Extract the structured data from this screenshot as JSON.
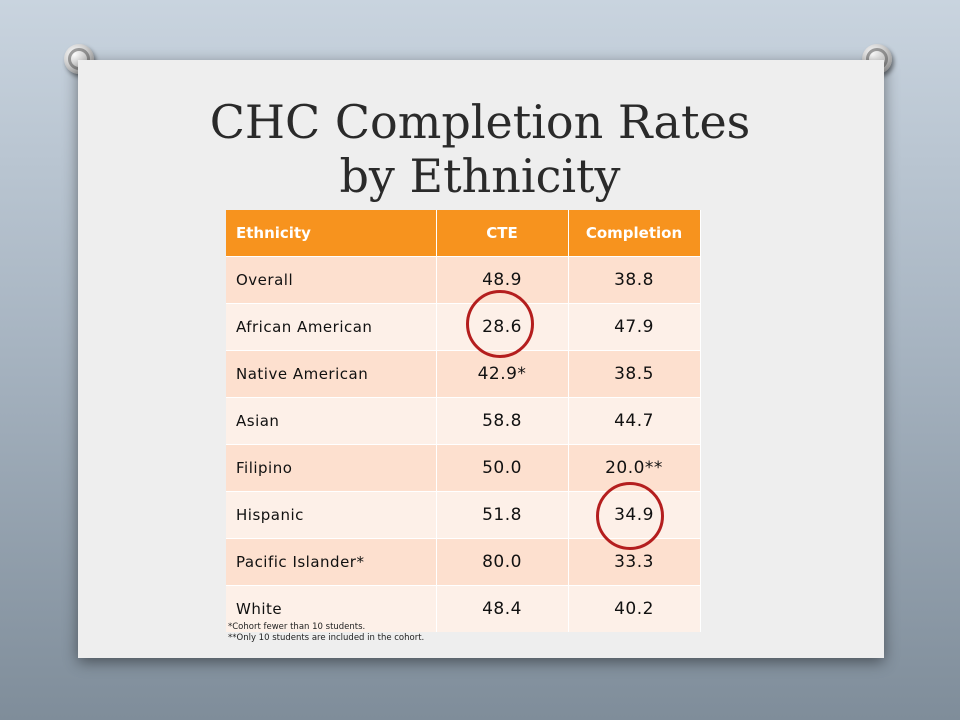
{
  "title": "CHC Completion Rates by Ethnicity",
  "table": {
    "headers": [
      "Ethnicity",
      "CTE",
      "Completion"
    ],
    "rows": [
      {
        "ethnicity": "Overall",
        "cte": "48.9",
        "completion": "38.8"
      },
      {
        "ethnicity": "African American",
        "cte": "28.6",
        "completion": "47.9"
      },
      {
        "ethnicity": "Native American",
        "cte": "42.9*",
        "completion": "38.5"
      },
      {
        "ethnicity": "Asian",
        "cte": "58.8",
        "completion": "44.7"
      },
      {
        "ethnicity": "Filipino",
        "cte": "50.0",
        "completion": "20.0**"
      },
      {
        "ethnicity": "Hispanic",
        "cte": "51.8",
        "completion": "34.9"
      },
      {
        "ethnicity": "Pacific Islander*",
        "cte": "80.0",
        "completion": "33.3"
      },
      {
        "ethnicity": "White",
        "cte": "48.4",
        "completion": "40.2"
      }
    ]
  },
  "footnotes": [
    "*Cohort fewer than 10 students.",
    "**Only 10 students are included in the cohort."
  ],
  "colors": {
    "header": "#f7931e",
    "row_dark": "#fde0cf",
    "row_light": "#fdf0e8",
    "highlight_circle": "#b41e1e"
  },
  "icons": [
    "pushpin-icon",
    "pushpin-icon"
  ]
}
